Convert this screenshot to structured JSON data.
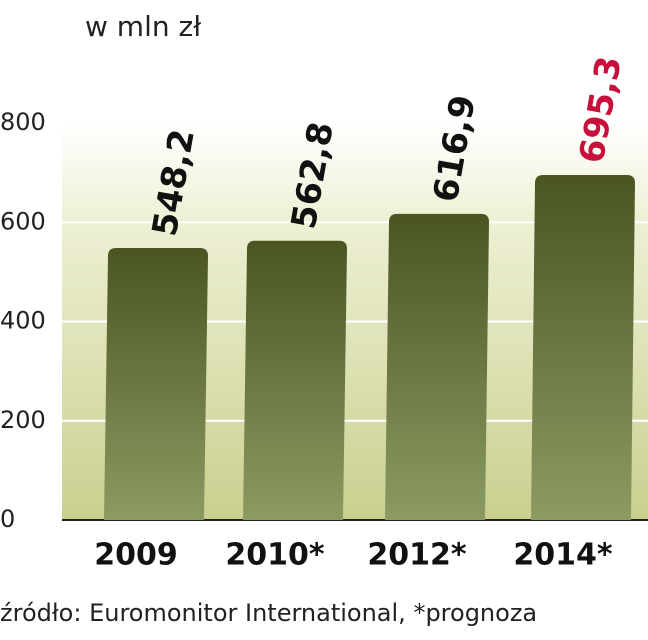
{
  "chart_data": {
    "type": "bar",
    "title": "w mln zł",
    "source": "źródło: Euromonitor International, *prognoza",
    "categories": [
      "2009",
      "2010*",
      "2012*",
      "2014*"
    ],
    "values": [
      548.2,
      562.8,
      616.9,
      695.3
    ],
    "value_labels": [
      "548,2",
      "562,8",
      "616,9",
      "695,3"
    ],
    "value_label_colors": [
      "#111111",
      "#111111",
      "#111111",
      "#c8103a"
    ],
    "color": "#55612d",
    "ylim": [
      0,
      800
    ],
    "yticks": [
      0,
      200,
      400,
      600,
      800
    ],
    "grid": true
  }
}
